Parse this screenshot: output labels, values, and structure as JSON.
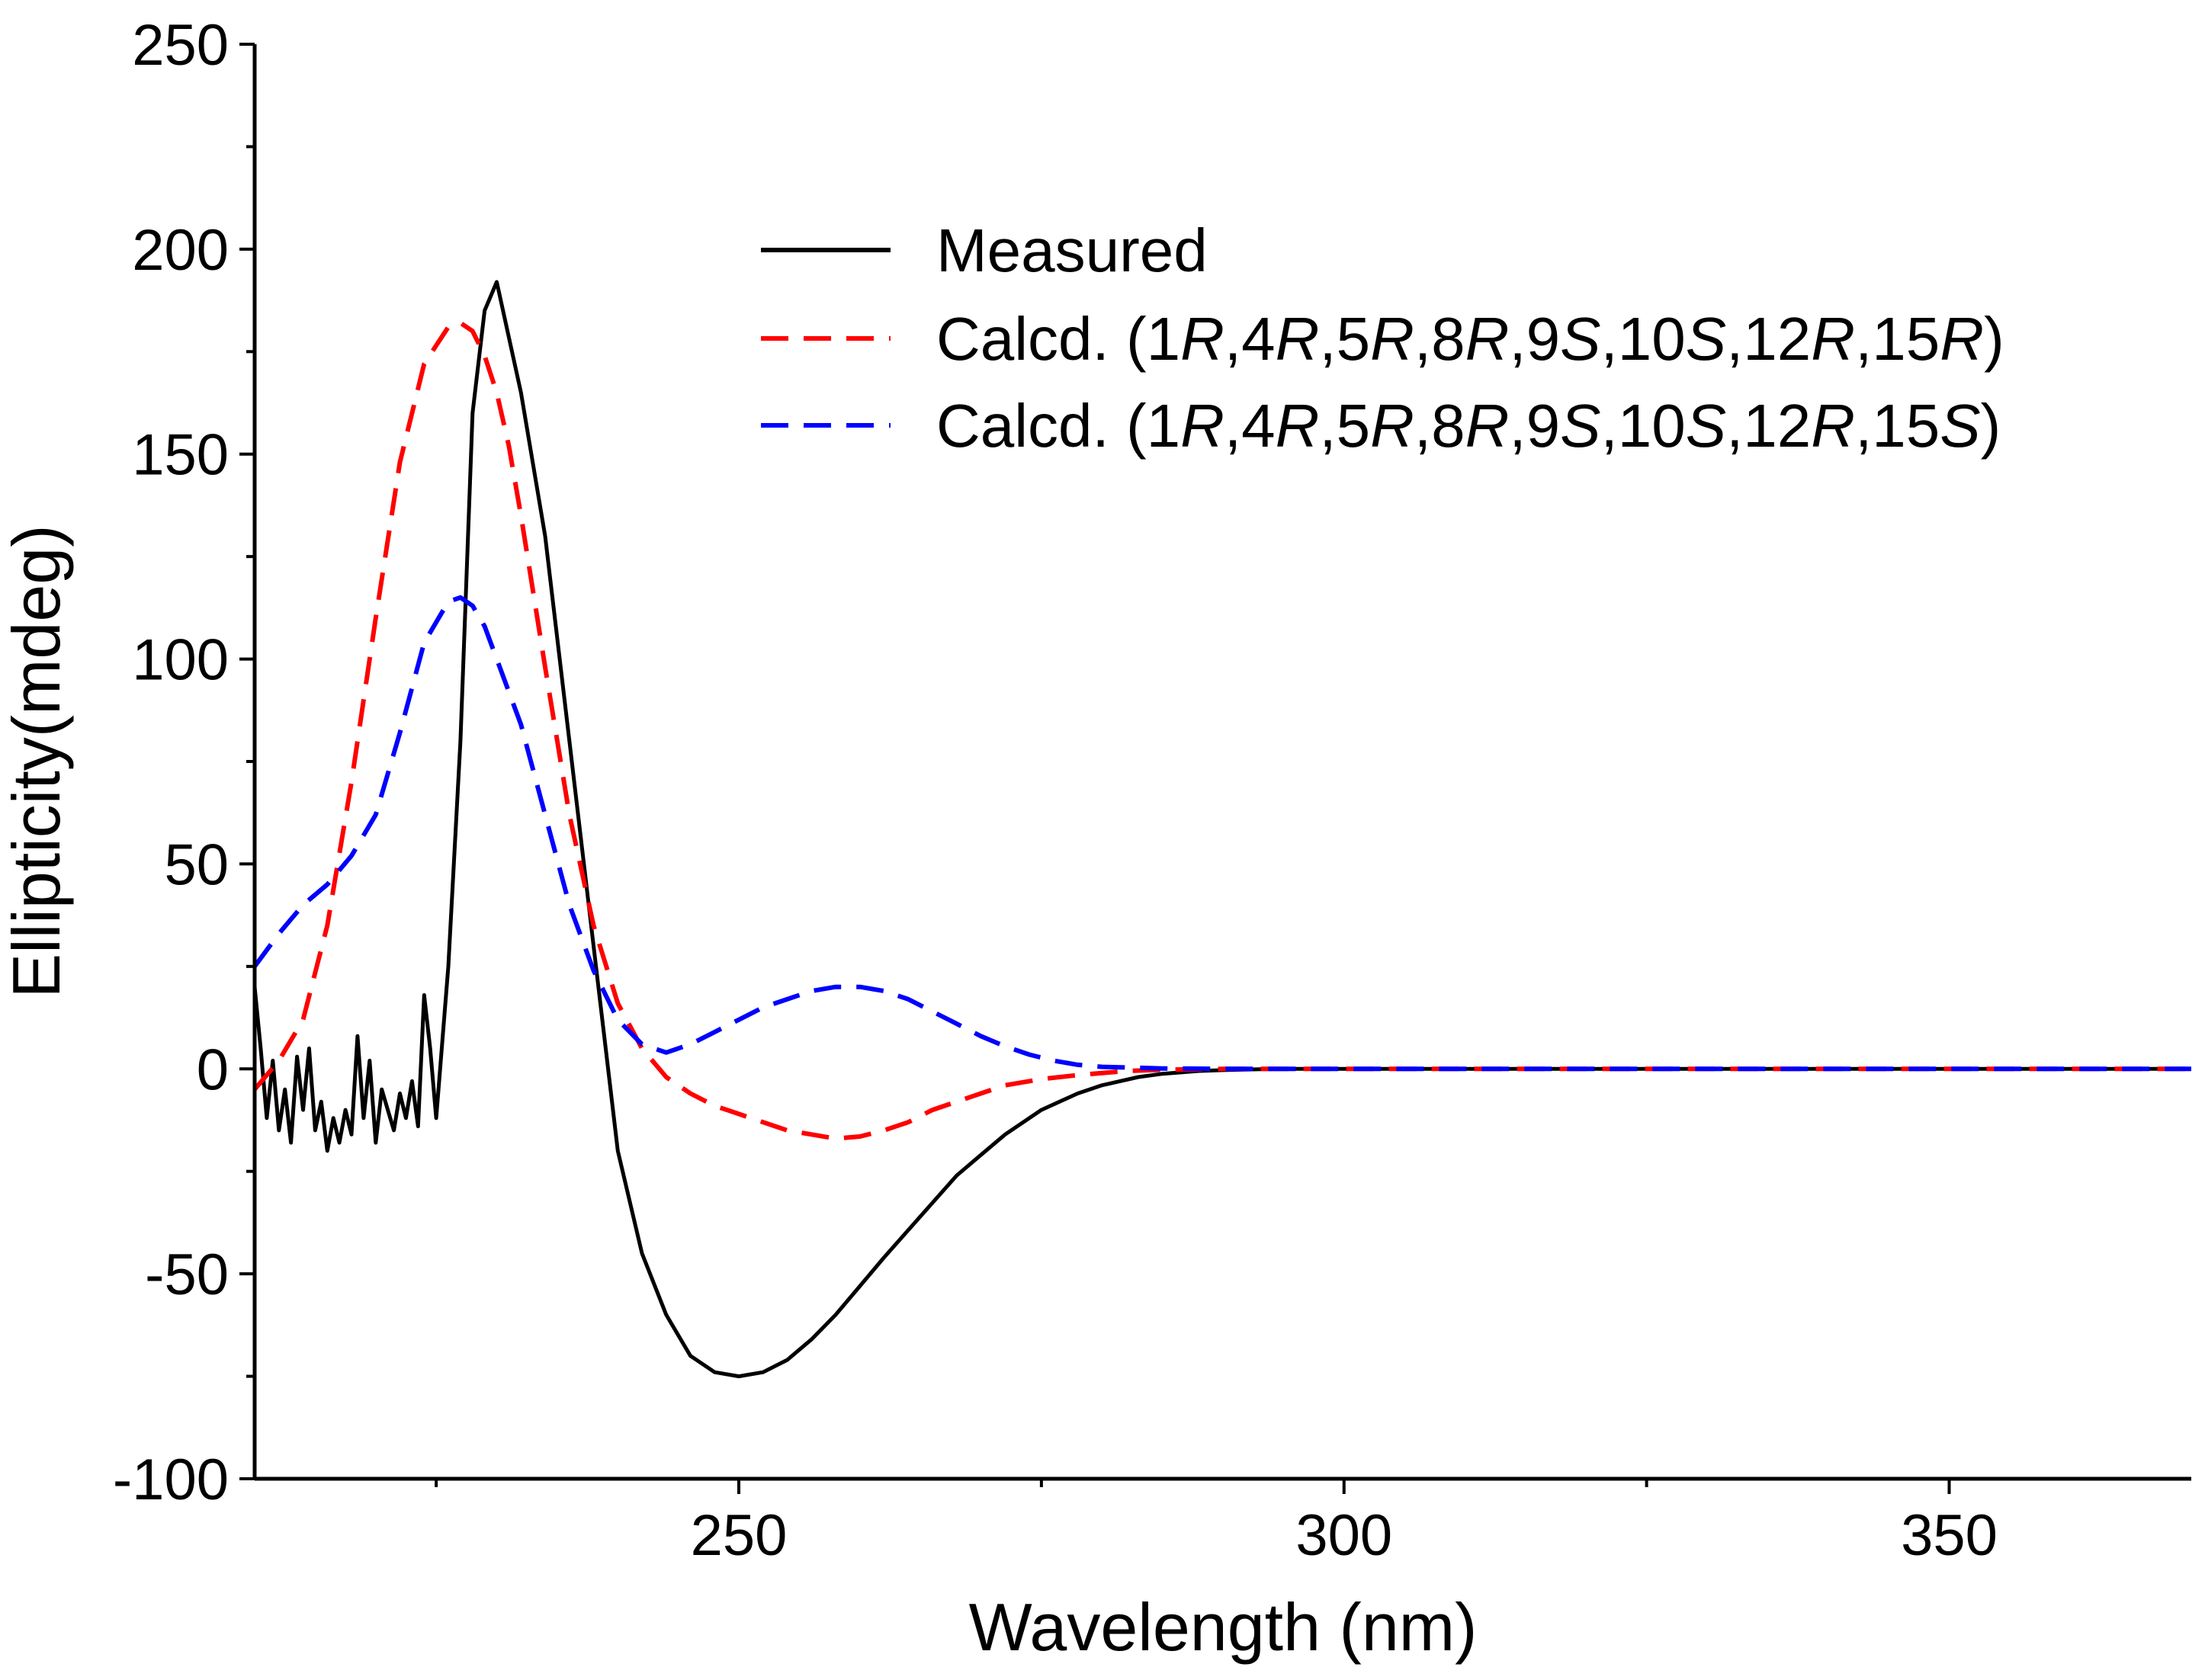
{
  "chart_data": {
    "type": "line",
    "xlabel": "Wavelength (nm)",
    "ylabel": "Ellipticity(mdeg)",
    "xlim": [
      210,
      370
    ],
    "ylim": [
      -100,
      250
    ],
    "xticks": [
      250,
      300,
      350
    ],
    "xminor_ticks": [
      225,
      275,
      325
    ],
    "yticks": [
      -100,
      -50,
      0,
      50,
      100,
      150,
      200,
      250
    ],
    "legend_position": "top-right",
    "series": [
      {
        "name": "Measured",
        "legend": [
          {
            "text": "Measured",
            "italic": false
          }
        ],
        "color": "#000000",
        "dash": "solid",
        "x": [
          210,
          210.5,
          211,
          211.5,
          212,
          212.5,
          213,
          213.5,
          214,
          214.5,
          215,
          215.5,
          216,
          216.5,
          217,
          217.5,
          218,
          218.5,
          219,
          219.5,
          220,
          220.5,
          221,
          221.5,
          222,
          222.5,
          223,
          223.5,
          224,
          224.5,
          225,
          226,
          227,
          228,
          229,
          230,
          232,
          234,
          236,
          238,
          240,
          242,
          244,
          246,
          248,
          250,
          252,
          254,
          256,
          258,
          260,
          262,
          265,
          268,
          270,
          272,
          275,
          278,
          280,
          283,
          285,
          288,
          290,
          293,
          296,
          300,
          310,
          320,
          330,
          340,
          350,
          360,
          370
        ],
        "y": [
          20,
          5,
          -12,
          2,
          -15,
          -5,
          -18,
          3,
          -10,
          5,
          -15,
          -8,
          -20,
          -12,
          -18,
          -10,
          -16,
          8,
          -12,
          2,
          -18,
          -5,
          -10,
          -15,
          -6,
          -12,
          -3,
          -14,
          18,
          5,
          -12,
          25,
          80,
          160,
          185,
          192,
          165,
          130,
          80,
          30,
          -20,
          -45,
          -60,
          -70,
          -74,
          -75,
          -74,
          -71,
          -66,
          -60,
          -53,
          -46,
          -36,
          -26,
          -21,
          -16,
          -10,
          -6,
          -4,
          -2,
          -1.2,
          -0.5,
          -0.3,
          -0.1,
          0,
          0,
          0,
          0,
          0,
          0,
          0,
          0,
          0
        ]
      },
      {
        "name": "Calcd. (1R,4R,5R,8R,9S,10S,12R,15R)",
        "legend": [
          {
            "text": "Calcd. (1",
            "italic": false
          },
          {
            "text": "R",
            "italic": true
          },
          {
            "text": ",4",
            "italic": false
          },
          {
            "text": "R",
            "italic": true
          },
          {
            "text": ",5",
            "italic": false
          },
          {
            "text": "R",
            "italic": true
          },
          {
            "text": ",8",
            "italic": false
          },
          {
            "text": "R",
            "italic": true
          },
          {
            "text": ",9",
            "italic": false
          },
          {
            "text": "S",
            "italic": true
          },
          {
            "text": ",10",
            "italic": false
          },
          {
            "text": "S",
            "italic": true
          },
          {
            "text": ",12",
            "italic": false
          },
          {
            "text": "R",
            "italic": true
          },
          {
            "text": ",15",
            "italic": false
          },
          {
            "text": "R",
            "italic": true
          },
          {
            "text": ")",
            "italic": false
          }
        ],
        "color": "#ff0000",
        "dash": "dashed",
        "x": [
          210,
          212,
          214,
          216,
          218,
          220,
          222,
          224,
          226,
          227,
          228,
          229,
          230,
          231,
          232,
          234,
          236,
          238,
          240,
          242,
          244,
          246,
          248,
          250,
          252,
          254,
          256,
          258,
          260,
          262,
          264,
          266,
          268,
          270,
          272,
          275,
          278,
          280,
          282,
          285,
          290,
          300,
          310,
          320,
          330,
          340,
          350,
          360,
          370
        ],
        "y": [
          -5,
          2,
          12,
          35,
          70,
          110,
          148,
          172,
          181,
          182,
          180,
          174,
          165,
          152,
          135,
          98,
          62,
          35,
          16,
          5,
          -2,
          -6,
          -9,
          -11,
          -13,
          -15,
          -16,
          -17,
          -16.5,
          -15,
          -13,
          -10,
          -8,
          -6,
          -4,
          -2.5,
          -1.5,
          -1,
          -0.5,
          -0.2,
          0,
          0,
          0,
          0,
          0,
          0,
          0,
          0,
          0
        ]
      },
      {
        "name": "Calcd. (1R,4R,5R,8R,9S,10S,12R,15S)",
        "legend": [
          {
            "text": "Calcd. (1",
            "italic": false
          },
          {
            "text": "R",
            "italic": true
          },
          {
            "text": ",4",
            "italic": false
          },
          {
            "text": "R",
            "italic": true
          },
          {
            "text": ",5",
            "italic": false
          },
          {
            "text": "R",
            "italic": true
          },
          {
            "text": ",8",
            "italic": false
          },
          {
            "text": "R",
            "italic": true
          },
          {
            "text": ",9",
            "italic": false
          },
          {
            "text": "S",
            "italic": true
          },
          {
            "text": ",10",
            "italic": false
          },
          {
            "text": "S",
            "italic": true
          },
          {
            "text": ",12",
            "italic": false
          },
          {
            "text": "R",
            "italic": true
          },
          {
            "text": ",15",
            "italic": false
          },
          {
            "text": "S",
            "italic": true
          },
          {
            "text": ")",
            "italic": false
          }
        ],
        "color": "#0000ff",
        "dash": "dashed",
        "x": [
          210,
          212,
          214,
          216,
          218,
          220,
          222,
          224,
          226,
          227,
          228,
          229,
          230,
          232,
          234,
          236,
          238,
          240,
          242,
          244,
          246,
          248,
          250,
          252,
          254,
          256,
          258,
          260,
          262,
          264,
          266,
          268,
          270,
          272,
          274,
          276,
          278,
          280,
          285,
          290,
          300,
          310,
          320,
          330,
          340,
          350,
          360,
          370
        ],
        "y": [
          25,
          33,
          40,
          45,
          52,
          62,
          82,
          104,
          114,
          115,
          113,
          108,
          100,
          84,
          62,
          40,
          24,
          12,
          6,
          4,
          6,
          9,
          12,
          15,
          17,
          19,
          20,
          20,
          19,
          17,
          14,
          11,
          8,
          5.5,
          3.5,
          2,
          1,
          0.5,
          0.1,
          0,
          0,
          0,
          0,
          0,
          0,
          0,
          0,
          0
        ]
      }
    ]
  }
}
